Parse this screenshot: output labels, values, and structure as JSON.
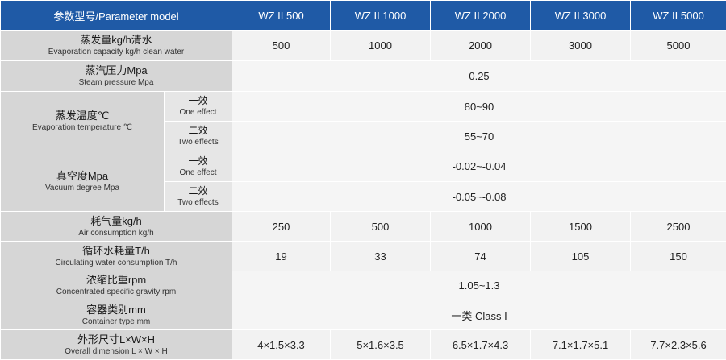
{
  "header": {
    "param": "参数型号/Parameter model",
    "models": [
      "WZ II 500",
      "WZ II 1000",
      "WZ II 2000",
      "WZ II 3000",
      "WZ II 5000"
    ]
  },
  "rows": {
    "evap_capacity": {
      "zh": "蒸发量kg/h清水",
      "en": "Evaporation capacity kg/h clean water",
      "values": [
        "500",
        "1000",
        "2000",
        "3000",
        "5000"
      ]
    },
    "steam_pressure": {
      "zh": "蒸汽压力Mpa",
      "en": "Steam pressure Mpa",
      "value": "0.25"
    },
    "evap_temp": {
      "zh": "蒸发温度℃",
      "en": "Evaporation temperature ℃",
      "one": {
        "zh": "一效",
        "en": "One effect",
        "value": "80~90"
      },
      "two": {
        "zh": "二效",
        "en": "Two effects",
        "value": "55~70"
      }
    },
    "vacuum": {
      "zh": "真空度Mpa",
      "en": "Vacuum degree Mpa",
      "one": {
        "zh": "一效",
        "en": "One effect",
        "value": "-0.02~-0.04"
      },
      "two": {
        "zh": "二效",
        "en": "Two effects",
        "value": "-0.05~-0.08"
      }
    },
    "air": {
      "zh": "耗气量kg/h",
      "en": "Air consumption kg/h",
      "values": [
        "250",
        "500",
        "1000",
        "1500",
        "2500"
      ]
    },
    "water": {
      "zh": "循环水耗量T/h",
      "en": "Circulating water consumption T/h",
      "values": [
        "19",
        "33",
        "74",
        "105",
        "150"
      ]
    },
    "gravity": {
      "zh": "浓缩比重rpm",
      "en": "Concentrated specific gravity rpm",
      "value": "1.05~1.3"
    },
    "container": {
      "zh": "容器类别mm",
      "en": "Container type mm",
      "value": "一类  Class I"
    },
    "dimension": {
      "zh": "外形尺寸L×W×H",
      "en": "Overall dimension L × W × H",
      "values": [
        "4×1.5×3.3",
        "5×1.6×3.5",
        "6.5×1.7×4.3",
        "7.1×1.7×5.1",
        "7.7×2.3×5.6"
      ]
    }
  }
}
